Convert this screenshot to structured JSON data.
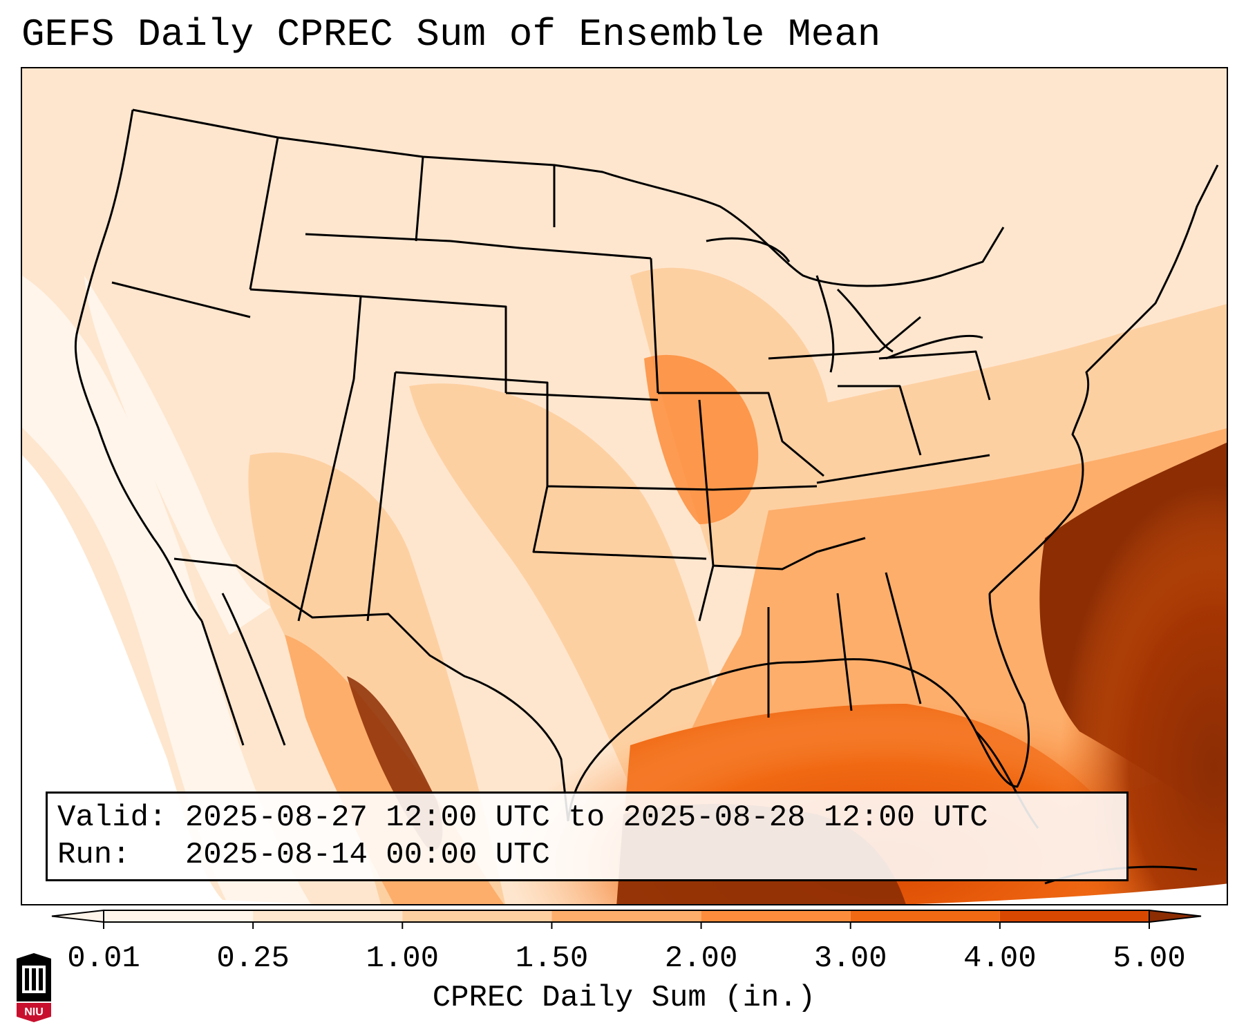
{
  "title": "GEFS Daily CPREC Sum of Ensemble Mean",
  "info": {
    "valid_label": "Valid:",
    "valid_value": "2025-08-27 12:00 UTC to 2025-08-28 12:00 UTC",
    "run_label": "Run:",
    "run_value": "2025-08-14 00:00 UTC"
  },
  "colorbar": {
    "title": "CPREC Daily Sum (in.)",
    "ticks": [
      "0.01",
      "0.25",
      "1.00",
      "1.50",
      "2.00",
      "3.00",
      "4.00",
      "5.00"
    ],
    "colors": [
      "#fff5eb",
      "#fee6ce",
      "#fdd0a2",
      "#fdae6b",
      "#fd8d3c",
      "#f16913",
      "#d94801",
      "#8c2d04"
    ],
    "extend": "both"
  },
  "map": {
    "region": "Continental United States",
    "precip_field_colors": {
      "trace": "#fff5eb",
      "light": "#fee6ce",
      "moderate": "#fdd0a2",
      "heavy": "#fdae6b",
      "very_heavy": "#f16913",
      "extreme": "#8c2d04"
    }
  },
  "logo": {
    "text": "NIU",
    "colors": [
      "#000000",
      "#c8102e"
    ]
  }
}
